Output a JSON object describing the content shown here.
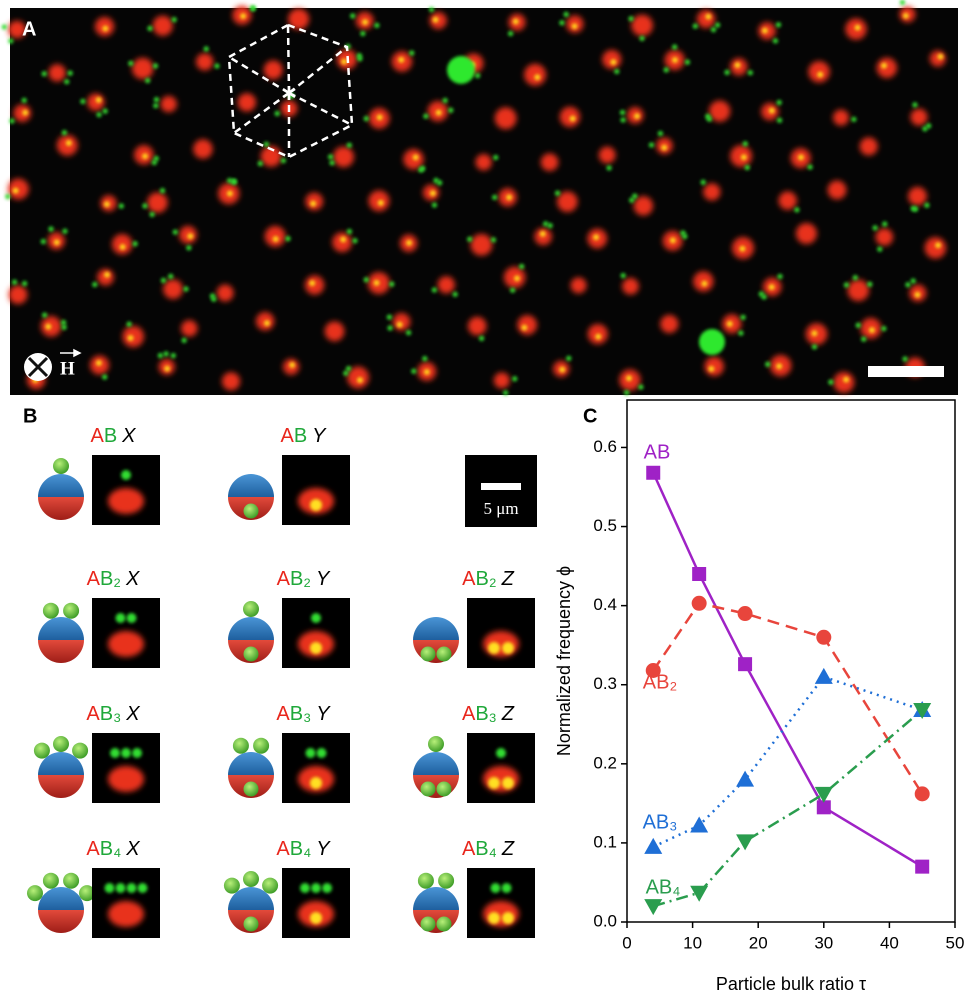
{
  "panel_a": {
    "label": "A",
    "field_symbol": "H"
  },
  "panel_b": {
    "label": "B",
    "scale_bar": "5 μm",
    "cells": [
      [
        {
          "a": "A",
          "b": "B",
          "view": "X"
        },
        {
          "a": "A",
          "b": "B",
          "view": "Y"
        }
      ],
      [
        {
          "a": "A",
          "b": "B₂",
          "view": "X"
        },
        {
          "a": "A",
          "b": "B₂",
          "view": "Y"
        },
        {
          "a": "A",
          "b": "B₂",
          "view": "Z"
        }
      ],
      [
        {
          "a": "A",
          "b": "B₃",
          "view": "X"
        },
        {
          "a": "A",
          "b": "B₃",
          "view": "Y"
        },
        {
          "a": "A",
          "b": "B₃",
          "view": "Z"
        }
      ],
      [
        {
          "a": "A",
          "b": "B₄",
          "view": "X"
        },
        {
          "a": "A",
          "b": "B₄",
          "view": "Y"
        },
        {
          "a": "A",
          "b": "B₄",
          "view": "Z"
        }
      ]
    ]
  },
  "chart_data": {
    "type": "line",
    "panel_label": "C",
    "x_label": "Particle bulk ratio τ",
    "y_label": "Normalized frequency ϕ",
    "x": [
      4,
      11,
      18,
      30,
      45
    ],
    "series": [
      {
        "name": "AB",
        "color": "#9f22c6",
        "dash": "solid",
        "marker": "square",
        "values": [
          0.568,
          0.44,
          0.326,
          0.145,
          0.07
        ]
      },
      {
        "name": "AB₂",
        "color": "#e8453c",
        "dash": "dash",
        "marker": "circle",
        "values": [
          0.318,
          0.403,
          0.39,
          0.36,
          0.162
        ]
      },
      {
        "name": "AB₃",
        "color": "#1f6fd6",
        "dash": "dot",
        "marker": "triangle-up",
        "values": [
          0.095,
          0.122,
          0.18,
          0.31,
          0.268
        ]
      },
      {
        "name": "AB₄",
        "color": "#2a9d4e",
        "dash": "dashdot",
        "marker": "triangle-down",
        "values": [
          0.02,
          0.037,
          0.102,
          0.162,
          0.268
        ]
      }
    ],
    "xlim": [
      0,
      50
    ],
    "xticks": [
      0,
      10,
      20,
      30,
      40,
      50
    ],
    "ylim": [
      0,
      0.66
    ],
    "yticks": [
      {
        "value": 0,
        "label": "0.0"
      },
      0.1,
      0.2,
      0.3,
      0.4,
      0.5,
      0.6
    ]
  }
}
